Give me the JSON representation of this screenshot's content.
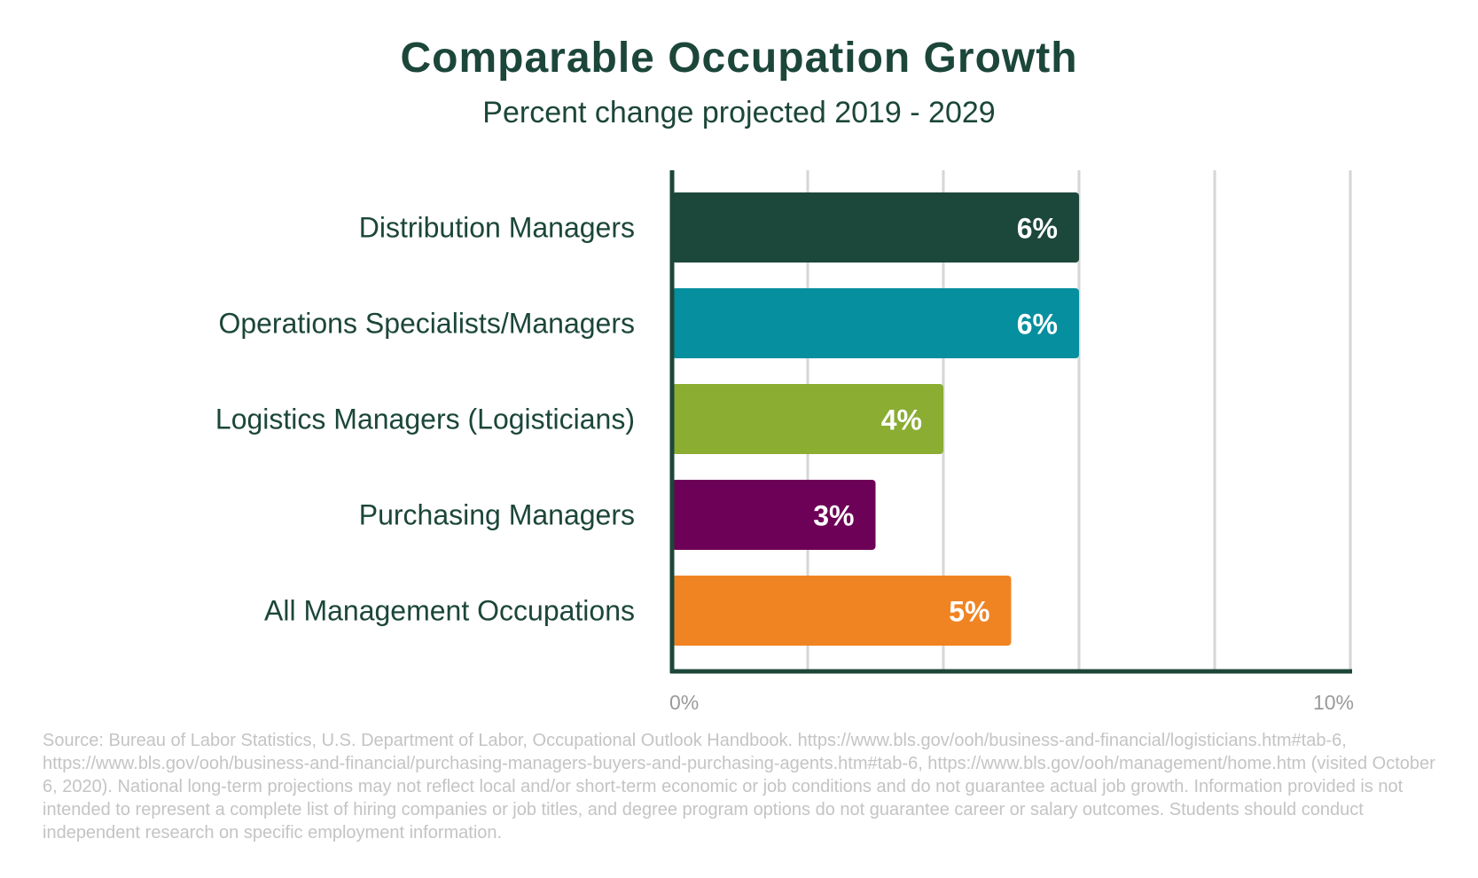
{
  "title": "Comparable Occupation Growth",
  "subtitle": "Percent change projected 2019 - 2029",
  "source": "Source: Bureau of Labor Statistics, U.S. Department of Labor, Occupational Outlook Handbook. https://www.bls.gov/ooh/business-and-financial/logisticians.htm#tab-6, https://www.bls.gov/ooh/business-and-financial/purchasing-managers-buyers-and-purchasing-agents.htm#tab-6, https://www.bls.gov/ooh/management/home.htm (visited October 6, 2020). National long-term projections may not reflect local and/or short-term economic or job conditions and do not guarantee actual job growth. Information provided is not intended to represent a complete list of hiring companies or job titles, and degree program options do not guarantee career or salary outcomes. Students should conduct independent research on specific employment information.",
  "chart_data": {
    "type": "bar",
    "orientation": "horizontal",
    "categories": [
      "Distribution Managers",
      "Operations Specialists/Managers",
      "Logistics Managers (Logisticians)",
      "Purchasing Managers",
      "All Management Occupations"
    ],
    "values": [
      6,
      6,
      4,
      3,
      5
    ],
    "data_labels": [
      "6%",
      "6%",
      "4%",
      "3%",
      "5%"
    ],
    "colors": [
      "#1c473b",
      "#068f9e",
      "#8aad32",
      "#6d0057",
      "#f08423"
    ],
    "xlim": [
      0,
      10
    ],
    "x_tick_labels": [
      "0%",
      "10%"
    ],
    "grid": true,
    "legend": "none"
  }
}
